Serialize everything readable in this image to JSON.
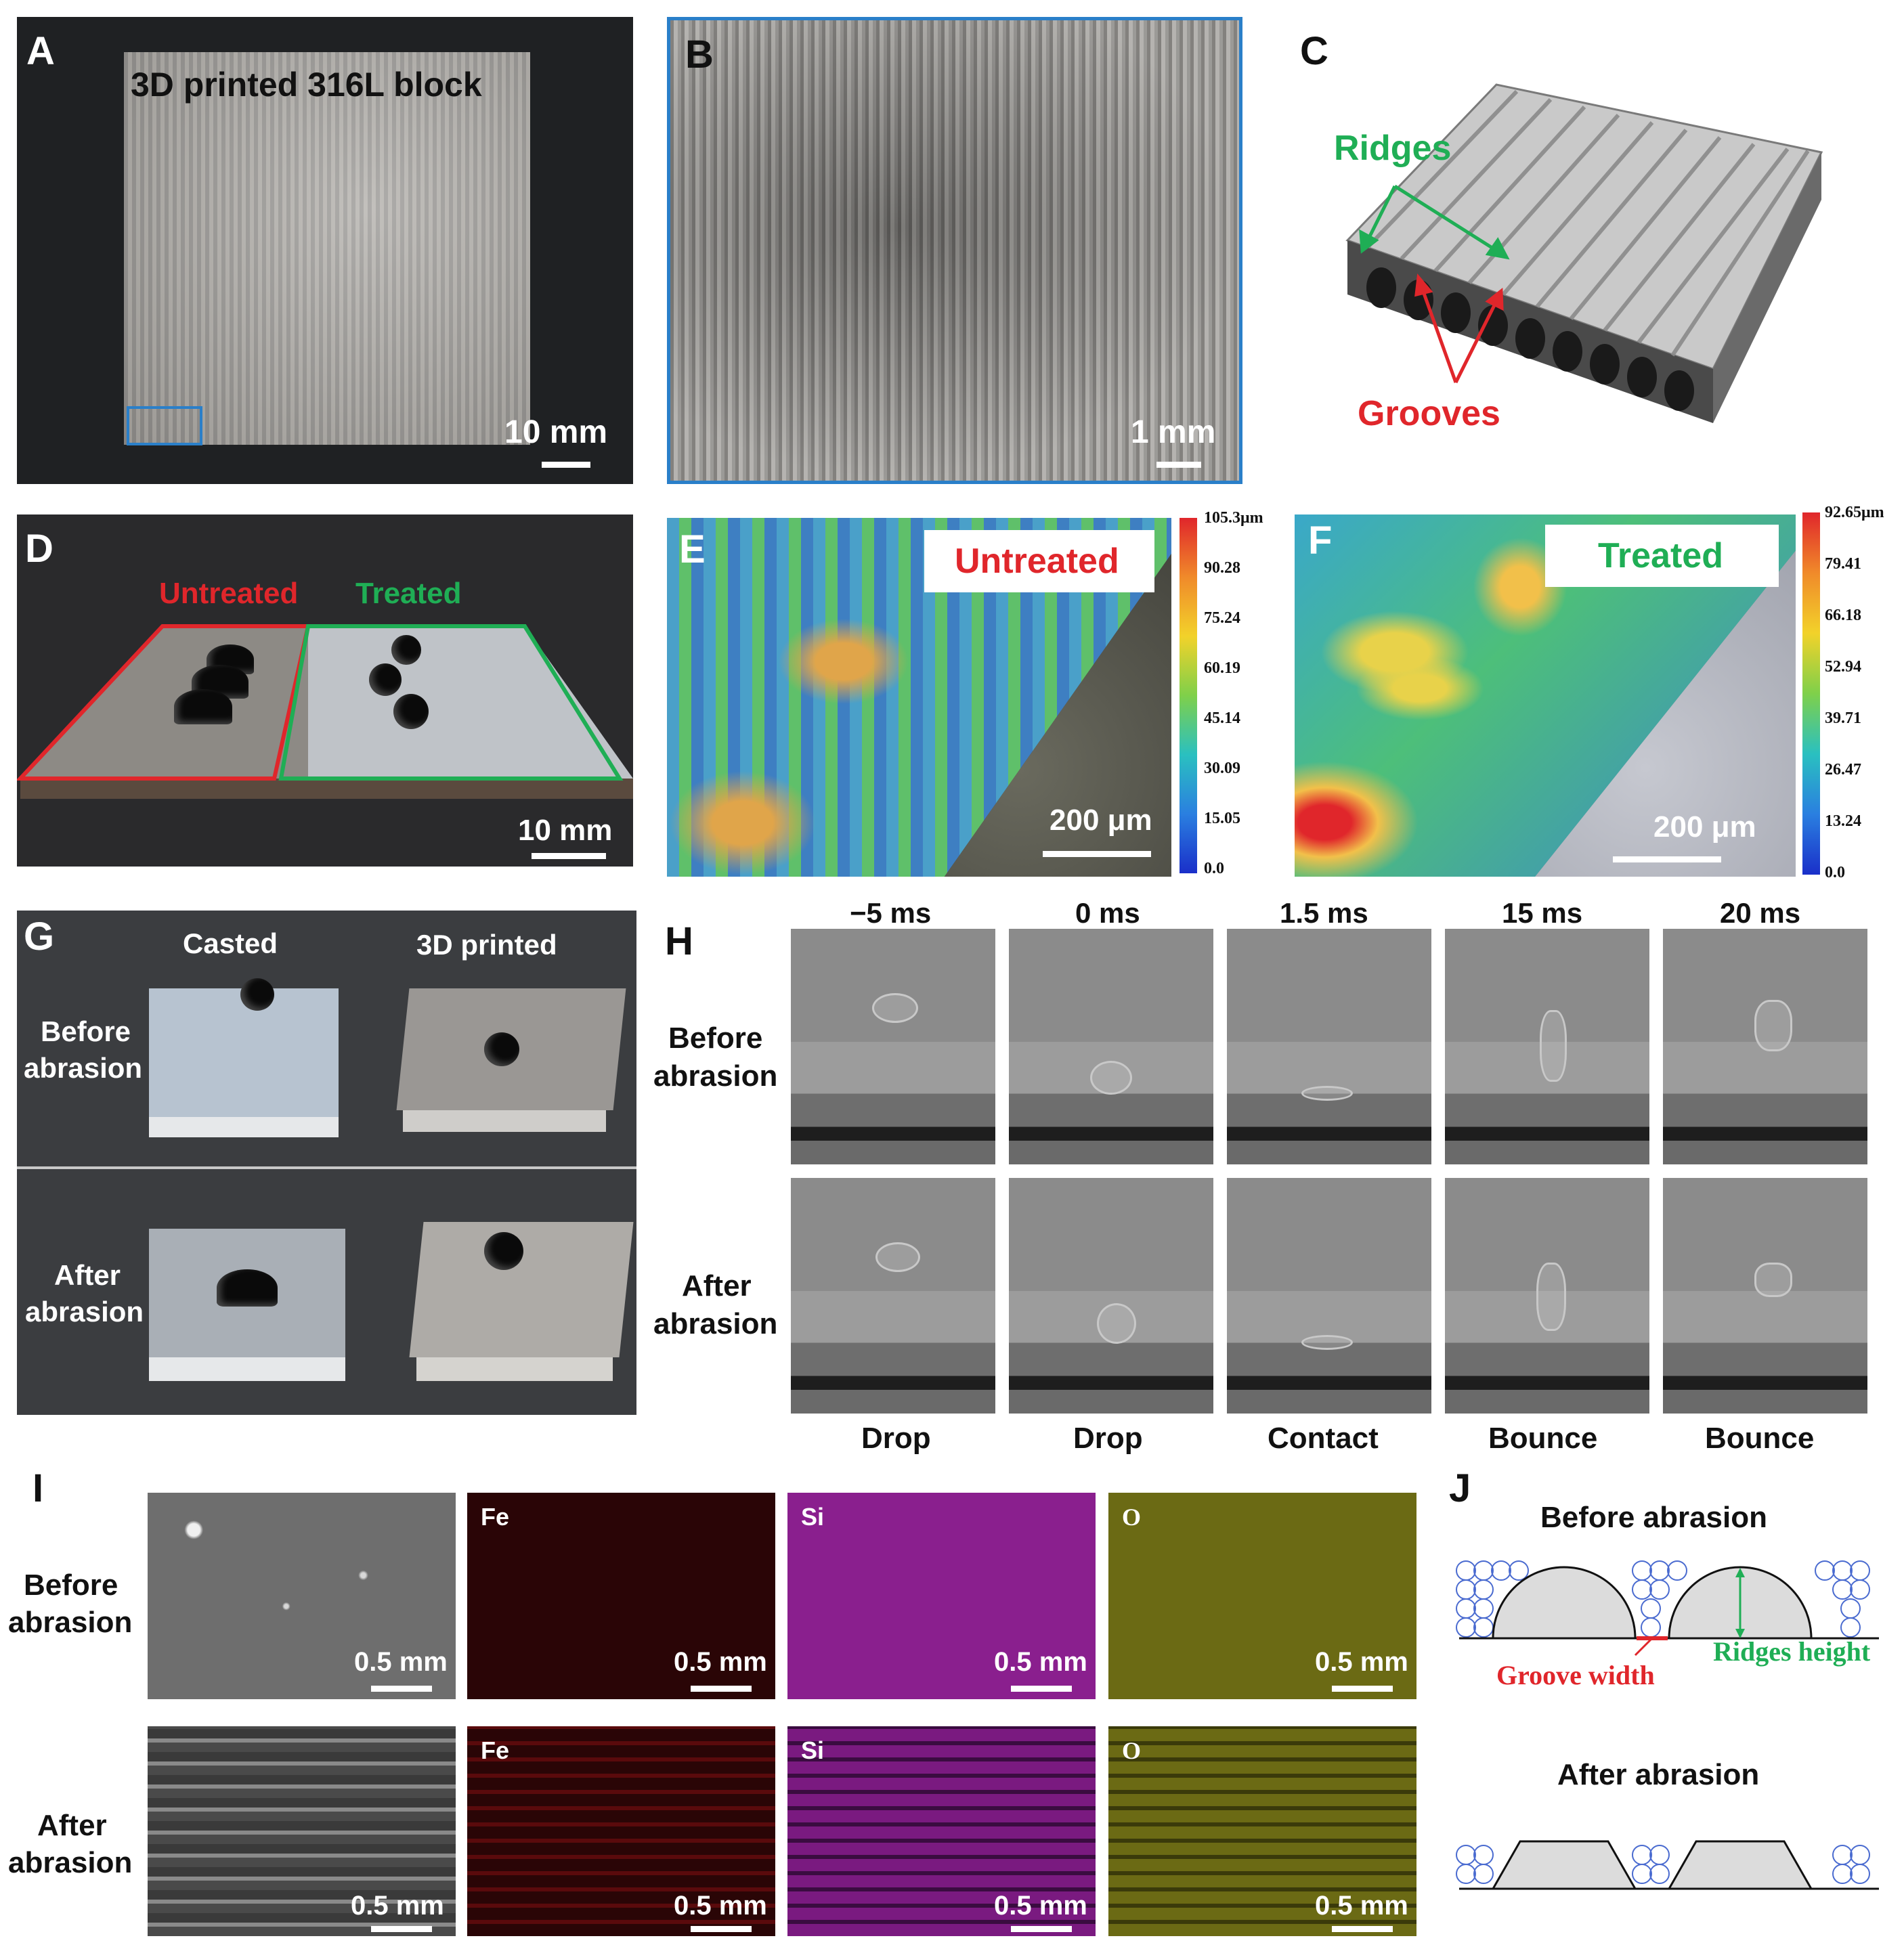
{
  "panels": {
    "A": {
      "letter": "A",
      "title": "3D printed 316L block",
      "scale": "10 mm"
    },
    "B": {
      "letter": "B",
      "scale": "1 mm"
    },
    "C": {
      "letter": "C",
      "ridges": "Ridges",
      "grooves": "Grooves"
    },
    "D": {
      "letter": "D",
      "untreated": "Untreated",
      "treated": "Treated",
      "scale": "10 mm"
    },
    "E": {
      "letter": "E",
      "tag": "Untreated",
      "scale": "200 μm",
      "colorbar": [
        "105.3μm",
        "90.28",
        "75.24",
        "60.19",
        "45.14",
        "30.09",
        "15.05",
        "0.0"
      ]
    },
    "F": {
      "letter": "F",
      "tag": "Treated",
      "scale": "200 μm",
      "colorbar": [
        "92.65μm",
        "79.41",
        "66.18",
        "52.94",
        "39.71",
        "26.47",
        "13.24",
        "0.0"
      ]
    },
    "G": {
      "letter": "G",
      "casted": "Casted",
      "printed": "3D printed",
      "before": [
        "Before",
        "abrasion"
      ],
      "after": [
        "After",
        "abrasion"
      ]
    },
    "H": {
      "letter": "H",
      "times": [
        "−5 ms",
        "0 ms",
        "1.5 ms",
        "15 ms",
        "20 ms"
      ],
      "before": [
        "Before",
        "abrasion"
      ],
      "after": [
        "After",
        "abrasion"
      ],
      "states": [
        "Drop",
        "Drop",
        "Contact",
        "Bounce",
        "Bounce"
      ]
    },
    "I": {
      "letter": "I",
      "before": [
        "Before",
        "abrasion"
      ],
      "after": [
        "After",
        "abrasion"
      ],
      "elements": [
        "Fe",
        "Si",
        "O"
      ],
      "scale": "0.5 mm"
    },
    "J": {
      "letter": "J",
      "before_title": "Before abrasion",
      "after_title": "After abrasion",
      "groove_width": "Groove width",
      "ridges_height": "Ridges height"
    }
  },
  "colors": {
    "untreated_red": "#e0262b",
    "treated_green": "#1fae55",
    "frame_blue": "#2a7fc9",
    "fe_map": "#2a0506",
    "si_map": "#8a1f8e",
    "o_map": "#6b6a14"
  }
}
